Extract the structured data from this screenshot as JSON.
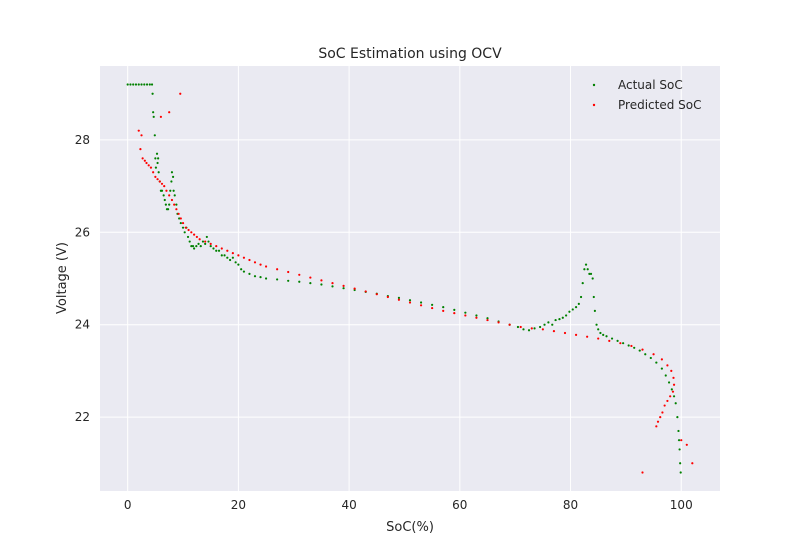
{
  "colors": {
    "background": "#eaeaf2",
    "grid": "#ffffff",
    "actual": "#008000",
    "predicted": "#ff0000"
  },
  "chart_data": {
    "type": "scatter",
    "title": "SoC Estimation using OCV",
    "xlabel": "SoC(%)",
    "ylabel": "Voltage (V)",
    "xlim": [
      -5,
      107
    ],
    "ylim": [
      20.4,
      29.6
    ],
    "xticks": [
      0,
      20,
      40,
      60,
      80,
      100
    ],
    "yticks": [
      22,
      24,
      26,
      28
    ],
    "grid": true,
    "legend_position": "top-right",
    "series": [
      {
        "name": "Actual SoC",
        "color": "#008000",
        "points": [
          [
            0.0,
            29.2
          ],
          [
            0.5,
            29.2
          ],
          [
            1.0,
            29.2
          ],
          [
            1.5,
            29.2
          ],
          [
            2.0,
            29.2
          ],
          [
            2.5,
            29.2
          ],
          [
            3.0,
            29.2
          ],
          [
            3.5,
            29.2
          ],
          [
            4.0,
            29.2
          ],
          [
            4.4,
            29.2
          ],
          [
            4.5,
            29.0
          ],
          [
            4.6,
            28.6
          ],
          [
            4.7,
            28.5
          ],
          [
            4.9,
            28.1
          ],
          [
            5.0,
            27.6
          ],
          [
            5.1,
            27.4
          ],
          [
            5.3,
            27.7
          ],
          [
            5.4,
            27.5
          ],
          [
            5.5,
            27.6
          ],
          [
            5.6,
            27.3
          ],
          [
            5.8,
            27.1
          ],
          [
            6.0,
            26.9
          ],
          [
            6.2,
            26.9
          ],
          [
            6.5,
            26.8
          ],
          [
            6.7,
            26.7
          ],
          [
            6.9,
            26.6
          ],
          [
            7.1,
            26.5
          ],
          [
            7.3,
            26.5
          ],
          [
            7.5,
            26.6
          ],
          [
            7.7,
            26.9
          ],
          [
            7.9,
            27.1
          ],
          [
            8.0,
            27.3
          ],
          [
            8.2,
            27.2
          ],
          [
            8.3,
            26.9
          ],
          [
            8.5,
            26.8
          ],
          [
            8.8,
            26.6
          ],
          [
            9.0,
            26.4
          ],
          [
            9.3,
            26.3
          ],
          [
            9.6,
            26.2
          ],
          [
            10.0,
            26.1
          ],
          [
            10.3,
            26.0
          ],
          [
            10.6,
            26.1
          ],
          [
            10.9,
            25.9
          ],
          [
            11.2,
            25.8
          ],
          [
            11.5,
            25.7
          ],
          [
            11.8,
            25.7
          ],
          [
            12.0,
            25.65
          ],
          [
            12.4,
            25.7
          ],
          [
            12.8,
            25.75
          ],
          [
            13.2,
            25.7
          ],
          [
            13.6,
            25.8
          ],
          [
            14.0,
            25.75
          ],
          [
            14.3,
            25.9
          ],
          [
            14.6,
            25.8
          ],
          [
            15.0,
            25.7
          ],
          [
            15.5,
            25.65
          ],
          [
            16.0,
            25.6
          ],
          [
            16.5,
            25.6
          ],
          [
            17.0,
            25.5
          ],
          [
            17.5,
            25.5
          ],
          [
            18.0,
            25.45
          ],
          [
            18.5,
            25.4
          ],
          [
            19.0,
            25.45
          ],
          [
            19.5,
            25.35
          ],
          [
            20.0,
            25.3
          ],
          [
            20.5,
            25.2
          ],
          [
            21.0,
            25.15
          ],
          [
            22.0,
            25.1
          ],
          [
            23.0,
            25.05
          ],
          [
            24.0,
            25.03
          ],
          [
            25.0,
            25.0
          ],
          [
            27.0,
            24.98
          ],
          [
            29.0,
            24.95
          ],
          [
            31.0,
            24.93
          ],
          [
            33.0,
            24.9
          ],
          [
            35.0,
            24.87
          ],
          [
            37.0,
            24.83
          ],
          [
            39.0,
            24.79
          ],
          [
            41.0,
            24.75
          ],
          [
            43.0,
            24.71
          ],
          [
            45.0,
            24.67
          ],
          [
            47.0,
            24.62
          ],
          [
            49.0,
            24.58
          ],
          [
            51.0,
            24.53
          ],
          [
            53.0,
            24.48
          ],
          [
            55.0,
            24.43
          ],
          [
            57.0,
            24.38
          ],
          [
            59.0,
            24.32
          ],
          [
            61.0,
            24.26
          ],
          [
            63.0,
            24.2
          ],
          [
            65.0,
            24.14
          ],
          [
            67.0,
            24.07
          ],
          [
            69.0,
            24.0
          ],
          [
            70.5,
            23.95
          ],
          [
            71.5,
            23.9
          ],
          [
            72.5,
            23.88
          ],
          [
            73.5,
            23.92
          ],
          [
            74.5,
            23.95
          ],
          [
            75.3,
            24.0
          ],
          [
            76.0,
            24.05
          ],
          [
            76.7,
            24.0
          ],
          [
            77.3,
            24.1
          ],
          [
            78.0,
            24.12
          ],
          [
            78.6,
            24.15
          ],
          [
            79.2,
            24.2
          ],
          [
            79.8,
            24.28
          ],
          [
            80.4,
            24.33
          ],
          [
            81.0,
            24.38
          ],
          [
            81.5,
            24.45
          ],
          [
            81.9,
            24.6
          ],
          [
            82.2,
            24.9
          ],
          [
            82.5,
            25.2
          ],
          [
            82.8,
            25.3
          ],
          [
            83.1,
            25.2
          ],
          [
            83.4,
            25.1
          ],
          [
            83.7,
            25.1
          ],
          [
            84.0,
            25.0
          ],
          [
            84.2,
            24.6
          ],
          [
            84.4,
            24.3
          ],
          [
            84.7,
            24.0
          ],
          [
            85.0,
            23.9
          ],
          [
            85.4,
            23.82
          ],
          [
            85.9,
            23.78
          ],
          [
            86.5,
            23.75
          ],
          [
            87.5,
            23.7
          ],
          [
            88.5,
            23.65
          ],
          [
            89.5,
            23.6
          ],
          [
            90.5,
            23.55
          ],
          [
            91.5,
            23.5
          ],
          [
            92.5,
            23.44
          ],
          [
            93.5,
            23.36
          ],
          [
            94.5,
            23.28
          ],
          [
            95.5,
            23.18
          ],
          [
            96.5,
            23.05
          ],
          [
            97.2,
            22.9
          ],
          [
            97.8,
            22.75
          ],
          [
            98.3,
            22.6
          ],
          [
            98.7,
            22.45
          ],
          [
            99.0,
            22.3
          ],
          [
            99.3,
            22.0
          ],
          [
            99.5,
            21.7
          ],
          [
            99.6,
            21.5
          ],
          [
            99.7,
            21.3
          ],
          [
            99.8,
            21.0
          ],
          [
            99.9,
            20.8
          ]
        ]
      },
      {
        "name": "Predicted SoC",
        "color": "#ff0000",
        "points": [
          [
            2.0,
            28.2
          ],
          [
            2.3,
            27.8
          ],
          [
            2.7,
            27.6
          ],
          [
            3.1,
            27.55
          ],
          [
            3.4,
            27.5
          ],
          [
            3.8,
            27.45
          ],
          [
            4.2,
            27.4
          ],
          [
            4.6,
            27.3
          ],
          [
            5.0,
            27.2
          ],
          [
            5.4,
            27.15
          ],
          [
            5.8,
            27.1
          ],
          [
            6.2,
            27.05
          ],
          [
            6.6,
            27.0
          ],
          [
            7.0,
            26.9
          ],
          [
            7.5,
            26.8
          ],
          [
            8.0,
            26.7
          ],
          [
            8.4,
            26.6
          ],
          [
            8.8,
            26.5
          ],
          [
            9.2,
            26.4
          ],
          [
            9.6,
            26.3
          ],
          [
            10.0,
            26.2
          ],
          [
            10.5,
            26.1
          ],
          [
            11.0,
            26.05
          ],
          [
            11.5,
            26.0
          ],
          [
            12.0,
            25.95
          ],
          [
            12.5,
            25.9
          ],
          [
            13.0,
            25.85
          ],
          [
            14.0,
            25.8
          ],
          [
            15.0,
            25.75
          ],
          [
            16.0,
            25.7
          ],
          [
            17.0,
            25.65
          ],
          [
            18.0,
            25.6
          ],
          [
            19.0,
            25.55
          ],
          [
            20.0,
            25.5
          ],
          [
            21.0,
            25.45
          ],
          [
            22.0,
            25.4
          ],
          [
            23.0,
            25.35
          ],
          [
            24.0,
            25.3
          ],
          [
            25.0,
            25.26
          ],
          [
            27.0,
            25.2
          ],
          [
            29.0,
            25.14
          ],
          [
            31.0,
            25.08
          ],
          [
            33.0,
            25.02
          ],
          [
            35.0,
            24.96
          ],
          [
            37.0,
            24.9
          ],
          [
            39.0,
            24.84
          ],
          [
            41.0,
            24.78
          ],
          [
            43.0,
            24.72
          ],
          [
            45.0,
            24.66
          ],
          [
            47.0,
            24.6
          ],
          [
            49.0,
            24.54
          ],
          [
            51.0,
            24.48
          ],
          [
            53.0,
            24.42
          ],
          [
            55.0,
            24.36
          ],
          [
            57.0,
            24.3
          ],
          [
            59.0,
            24.25
          ],
          [
            61.0,
            24.2
          ],
          [
            63.0,
            24.15
          ],
          [
            65.0,
            24.1
          ],
          [
            67.0,
            24.05
          ],
          [
            69.0,
            24.0
          ],
          [
            71.0,
            23.95
          ],
          [
            73.0,
            23.92
          ],
          [
            75.0,
            23.9
          ],
          [
            77.0,
            23.86
          ],
          [
            79.0,
            23.82
          ],
          [
            81.0,
            23.78
          ],
          [
            83.0,
            23.74
          ],
          [
            85.0,
            23.7
          ],
          [
            87.0,
            23.65
          ],
          [
            89.0,
            23.6
          ],
          [
            91.0,
            23.54
          ],
          [
            93.0,
            23.46
          ],
          [
            95.0,
            23.36
          ],
          [
            96.5,
            23.25
          ],
          [
            97.5,
            23.12
          ],
          [
            98.2,
            23.0
          ],
          [
            98.6,
            22.85
          ],
          [
            98.7,
            22.7
          ],
          [
            98.5,
            22.55
          ],
          [
            98.0,
            22.45
          ],
          [
            97.5,
            22.35
          ],
          [
            97.0,
            22.25
          ],
          [
            96.6,
            22.1
          ],
          [
            96.2,
            22.0
          ],
          [
            95.8,
            21.9
          ],
          [
            95.5,
            21.8
          ],
          [
            100.0,
            21.5
          ],
          [
            101.0,
            21.4
          ],
          [
            102.0,
            21.0
          ],
          [
            93.0,
            20.8
          ],
          [
            9.5,
            29.0
          ],
          [
            7.5,
            28.6
          ],
          [
            6.0,
            28.5
          ],
          [
            2.5,
            28.1
          ]
        ]
      }
    ]
  }
}
